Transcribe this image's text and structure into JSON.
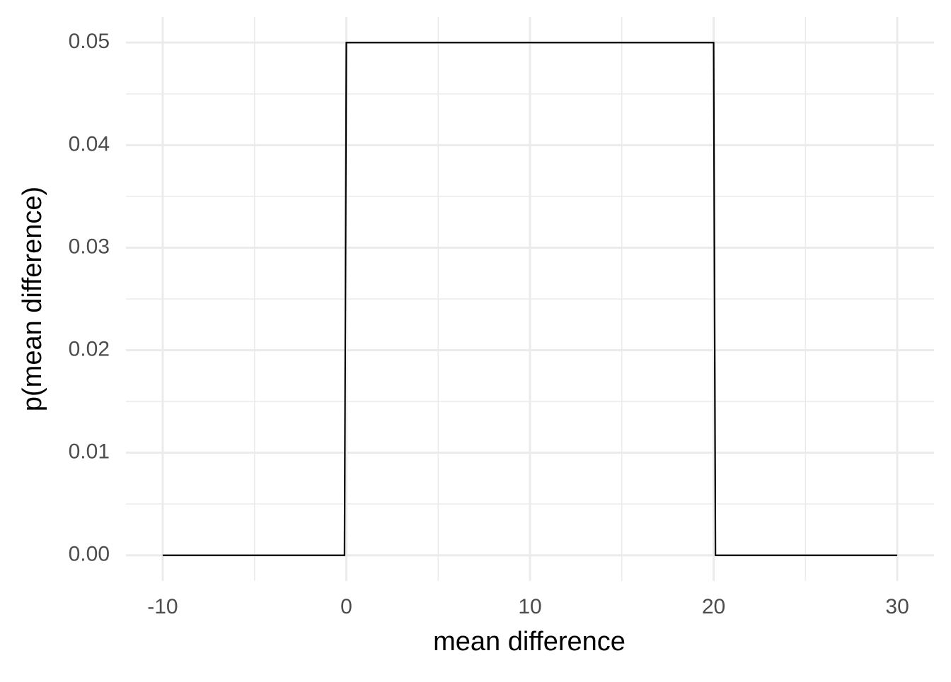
{
  "chart_data": {
    "type": "line",
    "x_label": "mean difference",
    "y_label": "p(mean difference)",
    "series": [
      {
        "color": "#000000",
        "x": [
          -10,
          -0.1,
          0,
          20,
          20.1,
          30
        ],
        "values": [
          0,
          0,
          0.05,
          0.05,
          0,
          0
        ]
      }
    ],
    "xlim": [
      -12,
      32
    ],
    "xticks": [
      -10,
      0,
      10,
      20,
      30
    ],
    "xminorticks": [
      -5,
      5,
      15,
      25
    ],
    "ylim": [
      -0.0025,
      0.0525
    ],
    "yticks": [
      {
        "value": 0,
        "label": "0.00"
      },
      0.01,
      0.02,
      0.03,
      0.04,
      0.05
    ],
    "yminorticks": [
      0.005,
      0.015,
      0.025,
      0.035,
      0.045
    ],
    "grid": true
  }
}
